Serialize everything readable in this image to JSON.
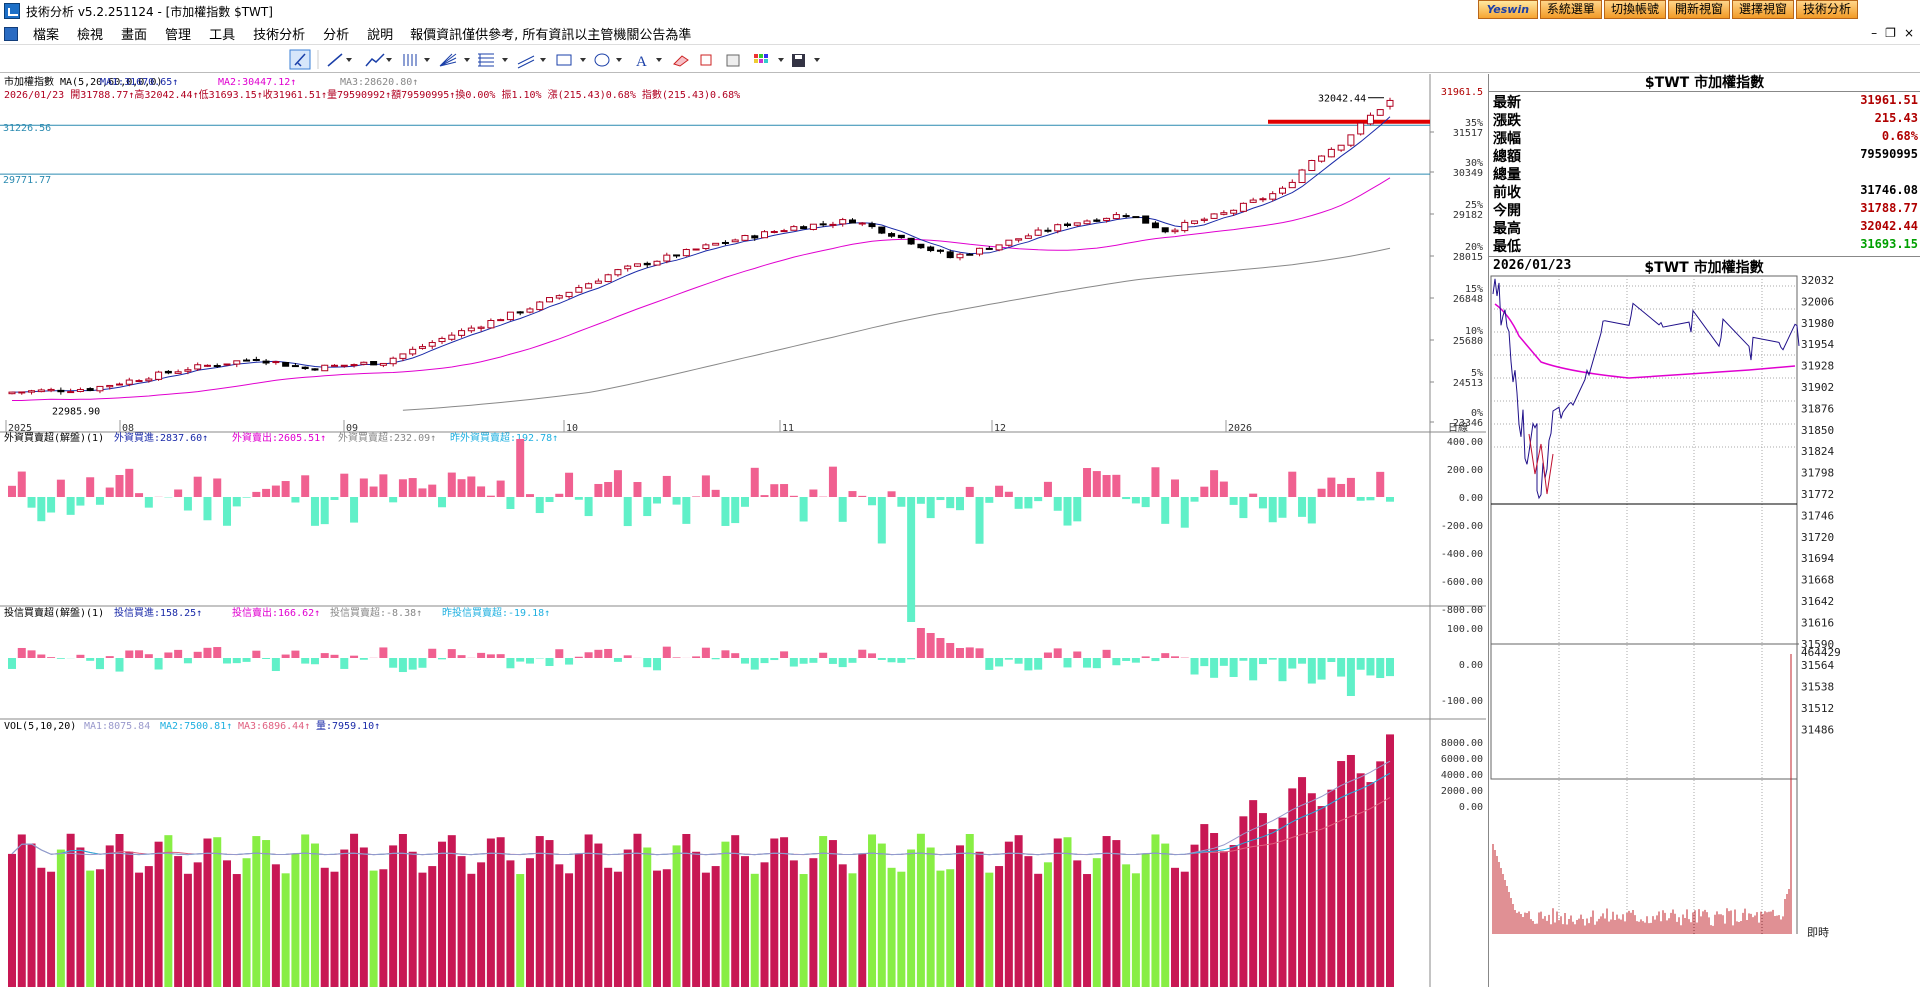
{
  "window": {
    "title": "技術分析 v5.2.251124 - [市加權指數 $TWT]"
  },
  "top_buttons": [
    "Yeswin",
    "系統選單",
    "切換帳號",
    "開新視窗",
    "選擇視窗",
    "技術分析"
  ],
  "menu": [
    "檔案",
    "檢視",
    "畫面",
    "管理",
    "工具",
    "技術分析",
    "分析",
    "說明"
  ],
  "notice": "報價資訊僅供參考, 所有資訊以主管機關公告為準",
  "window_controls": [
    "–",
    "❐",
    "×"
  ],
  "toolbar_icons": [
    "cursor-icon",
    "line-icon",
    "trend-icon",
    "bars-icon",
    "fan-icon",
    "fib-icon",
    "channel-icon",
    "rect-icon",
    "ellipse-icon",
    "text-icon",
    "erase-icon",
    "copy-icon",
    "paste-icon",
    "palette-icon",
    "save-icon"
  ],
  "main": {
    "header1": "市加權指數 MA(5,20,60,0,0,0) ",
    "ma1": "MA1:31670.65↑",
    "ma2": "MA2:30447.12↑",
    "ma3": "MA3:28620.80↑",
    "header2": "2026/01/23 開31788.77↑高32042.44↑低31693.15↑收31961.51↑量79590992↑額79590995↑換0.00% 振1.10% 漲(215.43)0.68% 指數(215.43)0.68%",
    "hline1": "31226.56",
    "hline2": "29771.77",
    "high_label": "32042.44",
    "low_label": "22985.90",
    "last_price": "31961.5",
    "price_ticks": [
      "31517",
      "30349",
      "29182",
      "28015",
      "26848",
      "25680",
      "24513",
      "23346"
    ],
    "pct_ticks": [
      "35%",
      "30%",
      "25%",
      "20%",
      "15%",
      "10%",
      "5%",
      "0%"
    ],
    "x_labels": [
      "2025",
      "08",
      "09",
      "10",
      "11",
      "12",
      "2026"
    ],
    "period": "日線"
  },
  "foreign": {
    "title": "外資買賣超(解盤)(1) ",
    "buy": "外資買進:2837.60↑",
    "sell": "外資賣出:2605.51↑",
    "net": "外資買賣超:232.09↑",
    "prev": "昨外資買賣超:192.78↑",
    "ticks": [
      "400.00",
      "200.00",
      "0.00",
      "-200.00",
      "-400.00",
      "-600.00",
      "-800.00"
    ]
  },
  "trust": {
    "title": "投信買賣超(解盤)(1) ",
    "buy": "投信買進:158.25↑",
    "sell": "投信賣出:166.62↑",
    "net": "投信買賣超:-8.38↑",
    "prev": "昨投信買賣超:-19.18↑",
    "ticks": [
      "100.00",
      "0.00",
      "-100.00"
    ]
  },
  "vol": {
    "title": "VOL(5,10,20) ",
    "ma1": "MA1:8075.84",
    "ma2": "MA2:7500.81↑",
    "ma3": "MA3:6896.44↑",
    "amount": "量:7959.10↑",
    "ticks": [
      "8000.00",
      "6000.00",
      "4000.00",
      "2000.00",
      "0.00"
    ]
  },
  "quote": {
    "title": "$TWT 市加權指數",
    "rows": [
      {
        "label": "最新",
        "value": "31961.51",
        "color": "#b00000"
      },
      {
        "label": "漲跌",
        "value": "215.43",
        "color": "#b00000"
      },
      {
        "label": "漲幅",
        "value": "0.68%",
        "color": "#b00000"
      },
      {
        "label": "總額",
        "value": "79590995",
        "color": "#000000"
      },
      {
        "label": "總量",
        "value": "",
        "color": "#000000"
      },
      {
        "label": "前收",
        "value": "31746.08",
        "color": "#000000"
      },
      {
        "label": "今開",
        "value": "31788.77",
        "color": "#b00000"
      },
      {
        "label": "最高",
        "value": "32042.44",
        "color": "#b00000"
      },
      {
        "label": "最低",
        "value": "31693.15",
        "color": "#00a000"
      }
    ]
  },
  "intraday": {
    "date": "2026/01/23",
    "title": "$TWT 市加權指數",
    "ticks": [
      "32032",
      "32006",
      "31980",
      "31954",
      "31928",
      "31902",
      "31876",
      "31850",
      "31824",
      "31798",
      "31772",
      "31746",
      "31720",
      "31694",
      "31668",
      "31642",
      "31616",
      "31590",
      "31564",
      "31538",
      "31512",
      "31486"
    ],
    "vol_max": "464429",
    "time_label": "即時"
  },
  "colors": {
    "up": "#b00020",
    "down": "#000000",
    "ma1": "#1a2aa8",
    "ma2": "#e000d0",
    "ma3": "#888888",
    "pos_bar": "#f06090",
    "neg_bar": "#60f0c8",
    "vol_up": "#c81854",
    "vol_down": "#88ee44",
    "hline": "#2a8ab0",
    "support": "#e00000",
    "intraday_line": "#20108a"
  }
}
